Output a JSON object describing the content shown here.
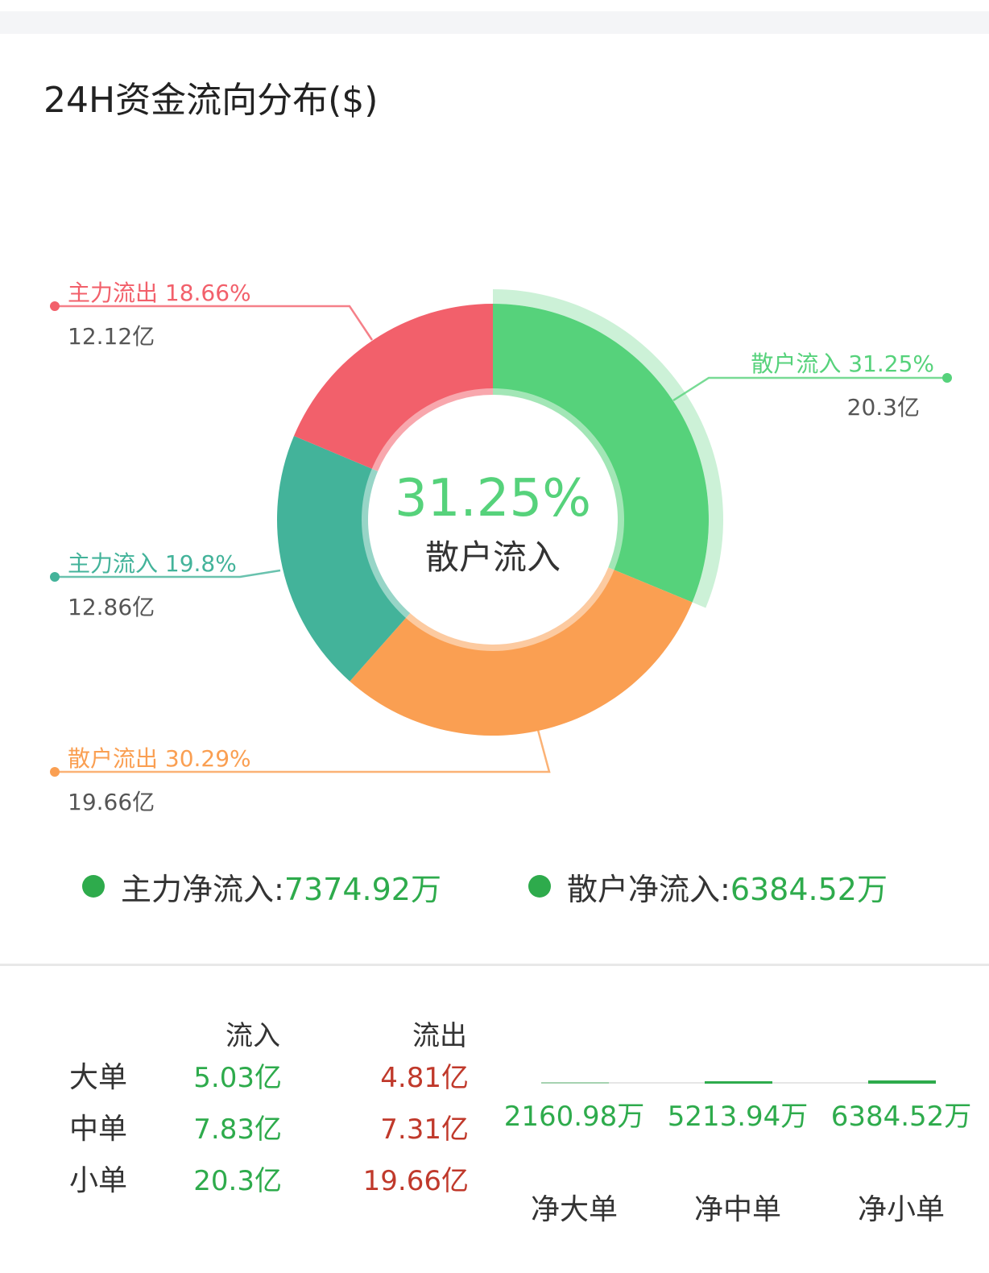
{
  "title": "24H资金流向分布($)",
  "center": {
    "percent": "31.25%",
    "label": "散户流入"
  },
  "colors": {
    "green": "#56d27b",
    "orange": "#fa9f52",
    "teal": "#43b39a",
    "red": "#f2606b",
    "net_green": "#2eab4c",
    "outflow_red": "#c0392b"
  },
  "chart_data": [
    {
      "type": "pie",
      "style": "donut",
      "title": "24H资金流向分布($)",
      "slices": [
        {
          "name": "散户流入",
          "percent": 31.25,
          "amount": "20.3亿",
          "color": "#56d27b",
          "highlighted": true
        },
        {
          "name": "散户流出",
          "percent": 30.29,
          "amount": "19.66亿",
          "color": "#fa9f52"
        },
        {
          "name": "主力流入",
          "percent": 19.8,
          "amount": "12.86亿",
          "color": "#43b39a"
        },
        {
          "name": "主力流出",
          "percent": 18.66,
          "amount": "12.12亿",
          "color": "#f2606b"
        }
      ]
    },
    {
      "type": "bar",
      "categories": [
        "净大单",
        "净中单",
        "净小单"
      ],
      "values": [
        2160.98,
        5213.94,
        6384.52
      ],
      "value_labels": [
        "2160.98万",
        "5213.94万",
        "6384.52万"
      ],
      "unit": "万"
    }
  ],
  "labels": {
    "retail_in": {
      "name": "散户流入 31.25%",
      "value": "20.3亿"
    },
    "retail_out": {
      "name": "散户流出 30.29%",
      "value": "19.66亿"
    },
    "main_in": {
      "name": "主力流入 19.8%",
      "value": "12.86亿"
    },
    "main_out": {
      "name": "主力流出 18.66%",
      "value": "12.12亿"
    }
  },
  "legend": {
    "main_net_label": "主力净流入:",
    "main_net_value": "7374.92万",
    "retail_net_label": "散户净流入:",
    "retail_net_value": "6384.52万"
  },
  "table": {
    "col_in": "流入",
    "col_out": "流出",
    "rows": [
      {
        "label": "大单",
        "in": "5.03亿",
        "out": "4.81亿"
      },
      {
        "label": "中单",
        "in": "7.83亿",
        "out": "7.31亿"
      },
      {
        "label": "小单",
        "in": "20.3亿",
        "out": "19.66亿"
      }
    ]
  },
  "net": {
    "items": [
      {
        "value": "2160.98万",
        "label": "净大单"
      },
      {
        "value": "5213.94万",
        "label": "净中单"
      },
      {
        "value": "6384.52万",
        "label": "净小单"
      }
    ]
  }
}
